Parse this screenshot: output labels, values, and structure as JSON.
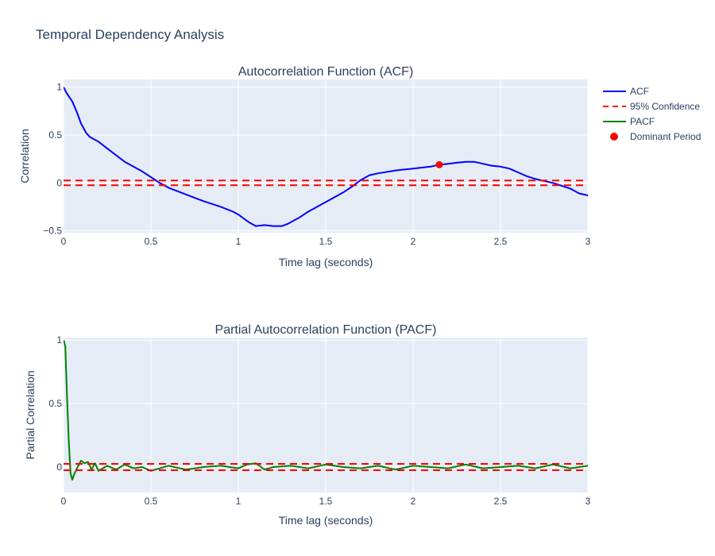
{
  "figure": {
    "title": "Temporal Dependency Analysis"
  },
  "colors": {
    "plot_bg": "#e5ecf6",
    "grid": "#ffffff",
    "acf": "#0000ff",
    "pacf": "#008000",
    "confidence": "#ff0000",
    "dominant": "#ff0000"
  },
  "legend": {
    "placement": "top-right",
    "items": [
      {
        "label": "ACF",
        "style": "line",
        "color": "#0000ff"
      },
      {
        "label": "95% Confidence",
        "style": "dash",
        "color": "#ff0000"
      },
      {
        "label": "PACF",
        "style": "line",
        "color": "#008000"
      },
      {
        "label": "Dominant Period",
        "style": "marker",
        "color": "#ff0000"
      }
    ]
  },
  "chart_data": [
    {
      "type": "line",
      "title": "Autocorrelation Function (ACF)",
      "xlabel": "Time lag (seconds)",
      "ylabel": "Correlation",
      "xlim": [
        0,
        3
      ],
      "ylim": [
        -0.52,
        1.08
      ],
      "xticks": [
        0,
        0.5,
        1,
        1.5,
        2,
        2.5,
        3
      ],
      "xtick_labels": [
        "0",
        "0.5",
        "1",
        "1.5",
        "2",
        "2.5",
        "3"
      ],
      "yticks": [
        -0.5,
        0,
        0.5,
        1
      ],
      "ytick_labels": [
        "−0.5",
        "0",
        "0.5",
        "1"
      ],
      "grid": true,
      "series": [
        {
          "name": "ACF",
          "x": [
            0,
            0.02,
            0.05,
            0.08,
            0.1,
            0.13,
            0.15,
            0.2,
            0.25,
            0.3,
            0.35,
            0.4,
            0.45,
            0.5,
            0.55,
            0.6,
            0.7,
            0.8,
            0.9,
            0.97,
            1.0,
            1.03,
            1.06,
            1.1,
            1.15,
            1.2,
            1.25,
            1.28,
            1.3,
            1.35,
            1.4,
            1.5,
            1.6,
            1.65,
            1.7,
            1.75,
            1.8,
            1.9,
            2.0,
            2.1,
            2.15,
            2.2,
            2.25,
            2.3,
            2.35,
            2.4,
            2.45,
            2.5,
            2.55,
            2.6,
            2.65,
            2.7,
            2.75,
            2.8,
            2.85,
            2.9,
            2.95,
            3.0
          ],
          "y": [
            1.0,
            0.93,
            0.85,
            0.72,
            0.62,
            0.52,
            0.48,
            0.43,
            0.36,
            0.29,
            0.22,
            0.17,
            0.12,
            0.06,
            0.0,
            -0.05,
            -0.12,
            -0.19,
            -0.25,
            -0.3,
            -0.33,
            -0.37,
            -0.41,
            -0.45,
            -0.44,
            -0.45,
            -0.45,
            -0.43,
            -0.41,
            -0.36,
            -0.3,
            -0.2,
            -0.1,
            -0.04,
            0.03,
            0.08,
            0.1,
            0.13,
            0.15,
            0.17,
            0.19,
            0.2,
            0.21,
            0.22,
            0.22,
            0.2,
            0.18,
            0.17,
            0.15,
            0.11,
            0.07,
            0.04,
            0.02,
            0.0,
            -0.03,
            -0.06,
            -0.11,
            -0.13
          ]
        },
        {
          "name": "95% Confidence",
          "x": [
            0,
            3
          ],
          "upper": 0.025,
          "lower": -0.025
        },
        {
          "name": "Dominant Period",
          "type": "scatter",
          "x": [
            2.15
          ],
          "y": [
            0.19
          ]
        }
      ]
    },
    {
      "type": "line",
      "title": "Partial Autocorrelation Function (PACF)",
      "xlabel": "Time lag (seconds)",
      "ylabel": "Partial Correlation",
      "xlim": [
        0,
        3
      ],
      "ylim": [
        -0.2,
        1.02
      ],
      "xticks": [
        0,
        0.5,
        1,
        1.5,
        2,
        2.5,
        3
      ],
      "xtick_labels": [
        "0",
        "0.5",
        "1",
        "1.5",
        "2",
        "2.5",
        "3"
      ],
      "yticks": [
        0,
        0.5,
        1
      ],
      "ytick_labels": [
        "0",
        "0.5",
        "1"
      ],
      "grid": true,
      "series": [
        {
          "name": "PACF",
          "x": [
            0,
            0.01,
            0.02,
            0.03,
            0.04,
            0.05,
            0.06,
            0.08,
            0.1,
            0.12,
            0.14,
            0.16,
            0.18,
            0.2,
            0.25,
            0.3,
            0.35,
            0.4,
            0.45,
            0.5,
            0.6,
            0.7,
            0.8,
            0.9,
            1.0,
            1.05,
            1.1,
            1.15,
            1.2,
            1.3,
            1.4,
            1.5,
            1.6,
            1.7,
            1.8,
            1.9,
            2.0,
            2.1,
            2.2,
            2.3,
            2.4,
            2.5,
            2.6,
            2.7,
            2.8,
            2.9,
            3.0
          ],
          "y": [
            1.0,
            0.95,
            0.55,
            0.2,
            -0.05,
            -0.1,
            -0.06,
            0.0,
            0.05,
            0.03,
            0.04,
            -0.02,
            0.03,
            -0.03,
            0.01,
            -0.02,
            0.02,
            -0.01,
            0.0,
            -0.03,
            0.01,
            -0.02,
            0.0,
            0.01,
            -0.01,
            0.02,
            0.03,
            -0.02,
            0.0,
            0.01,
            -0.01,
            0.02,
            0.0,
            -0.01,
            0.01,
            -0.02,
            0.01,
            0.0,
            -0.01,
            0.02,
            -0.01,
            0.0,
            0.01,
            -0.01,
            0.02,
            -0.01,
            0.01
          ]
        },
        {
          "name": "95% Confidence",
          "x": [
            0,
            3
          ],
          "upper": 0.025,
          "lower": -0.025
        }
      ]
    }
  ]
}
